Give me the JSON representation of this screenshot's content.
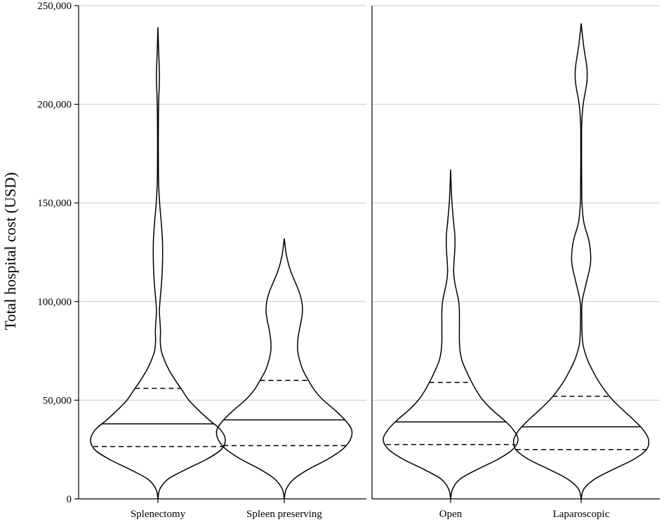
{
  "chart_data": {
    "type": "violin",
    "ylabel": "Total hospital cost (USD)",
    "ylim": [
      0,
      250000
    ],
    "yticks": [
      0,
      50000,
      100000,
      150000,
      200000,
      250000
    ],
    "ytick_labels": [
      "0",
      "50,000",
      "100,000",
      "150,000",
      "200,000",
      "250,000"
    ],
    "grid": "horizontal",
    "panels": [
      {
        "categories": [
          "Splenectomy",
          "Spleen preserving"
        ],
        "violins": [
          {
            "category": "Splenectomy",
            "median": 38000,
            "q1": 26500,
            "q3": 56000,
            "min": 0,
            "max": 239000,
            "density": [
              [
                0,
                0
              ],
              [
                5000,
                0.03
              ],
              [
                10000,
                0.15
              ],
              [
                15000,
                0.42
              ],
              [
                20000,
                0.72
              ],
              [
                25000,
                0.94
              ],
              [
                30000,
                1.0
              ],
              [
                35000,
                0.93
              ],
              [
                40000,
                0.76
              ],
              [
                45000,
                0.6
              ],
              [
                50000,
                0.46
              ],
              [
                55000,
                0.36
              ],
              [
                60000,
                0.26
              ],
              [
                65000,
                0.17
              ],
              [
                70000,
                0.1
              ],
              [
                75000,
                0.05
              ],
              [
                80000,
                0.035
              ],
              [
                85000,
                0.038
              ],
              [
                90000,
                0.03
              ],
              [
                95000,
                0.022
              ],
              [
                100000,
                0.03
              ],
              [
                110000,
                0.055
              ],
              [
                120000,
                0.068
              ],
              [
                130000,
                0.068
              ],
              [
                140000,
                0.05
              ],
              [
                150000,
                0.025
              ],
              [
                160000,
                0.01
              ],
              [
                170000,
                0.007
              ],
              [
                180000,
                0.006
              ],
              [
                190000,
                0.007
              ],
              [
                200000,
                0.01
              ],
              [
                210000,
                0.02
              ],
              [
                215000,
                0.022
              ],
              [
                220000,
                0.018
              ],
              [
                230000,
                0.008
              ],
              [
                239000,
                0
              ]
            ]
          },
          {
            "category": "Spleen preserving",
            "median": 40000,
            "q1": 27000,
            "q3": 60000,
            "min": 0,
            "max": 132000,
            "density": [
              [
                0,
                0
              ],
              [
                5000,
                0.03
              ],
              [
                10000,
                0.14
              ],
              [
                15000,
                0.36
              ],
              [
                20000,
                0.64
              ],
              [
                25000,
                0.86
              ],
              [
                30000,
                0.98
              ],
              [
                35000,
                1.0
              ],
              [
                40000,
                0.9
              ],
              [
                45000,
                0.75
              ],
              [
                50000,
                0.58
              ],
              [
                55000,
                0.45
              ],
              [
                60000,
                0.36
              ],
              [
                65000,
                0.28
              ],
              [
                70000,
                0.23
              ],
              [
                75000,
                0.2
              ],
              [
                80000,
                0.2
              ],
              [
                85000,
                0.22
              ],
              [
                90000,
                0.25
              ],
              [
                95000,
                0.27
              ],
              [
                100000,
                0.26
              ],
              [
                105000,
                0.22
              ],
              [
                110000,
                0.16
              ],
              [
                115000,
                0.1
              ],
              [
                120000,
                0.055
              ],
              [
                125000,
                0.025
              ],
              [
                132000,
                0
              ]
            ]
          }
        ]
      },
      {
        "categories": [
          "Open",
          "Laparoscopic"
        ],
        "violins": [
          {
            "category": "Open",
            "median": 39000,
            "q1": 27500,
            "q3": 59000,
            "min": 0,
            "max": 167000,
            "density": [
              [
                0,
                0
              ],
              [
                5000,
                0.03
              ],
              [
                10000,
                0.14
              ],
              [
                15000,
                0.4
              ],
              [
                20000,
                0.7
              ],
              [
                25000,
                0.92
              ],
              [
                30000,
                1.0
              ],
              [
                35000,
                0.93
              ],
              [
                40000,
                0.79
              ],
              [
                45000,
                0.62
              ],
              [
                50000,
                0.48
              ],
              [
                55000,
                0.38
              ],
              [
                60000,
                0.3
              ],
              [
                65000,
                0.23
              ],
              [
                70000,
                0.17
              ],
              [
                75000,
                0.14
              ],
              [
                80000,
                0.13
              ],
              [
                85000,
                0.13
              ],
              [
                90000,
                0.13
              ],
              [
                95000,
                0.13
              ],
              [
                100000,
                0.12
              ],
              [
                105000,
                0.09
              ],
              [
                110000,
                0.06
              ],
              [
                115000,
                0.045
              ],
              [
                120000,
                0.05
              ],
              [
                125000,
                0.06
              ],
              [
                130000,
                0.065
              ],
              [
                135000,
                0.06
              ],
              [
                140000,
                0.045
              ],
              [
                150000,
                0.02
              ],
              [
                160000,
                0.007
              ],
              [
                167000,
                0
              ]
            ]
          },
          {
            "category": "Laparoscopic",
            "median": 36500,
            "q1": 25000,
            "q3": 52000,
            "min": 0,
            "max": 241000,
            "density": [
              [
                0,
                0
              ],
              [
                5000,
                0.04
              ],
              [
                10000,
                0.2
              ],
              [
                15000,
                0.48
              ],
              [
                20000,
                0.78
              ],
              [
                25000,
                0.97
              ],
              [
                30000,
                1.0
              ],
              [
                35000,
                0.92
              ],
              [
                40000,
                0.78
              ],
              [
                45000,
                0.62
              ],
              [
                50000,
                0.47
              ],
              [
                55000,
                0.35
              ],
              [
                60000,
                0.25
              ],
              [
                65000,
                0.17
              ],
              [
                70000,
                0.1
              ],
              [
                75000,
                0.05
              ],
              [
                80000,
                0.02
              ],
              [
                90000,
                0.01
              ],
              [
                100000,
                0.015
              ],
              [
                110000,
                0.08
              ],
              [
                120000,
                0.14
              ],
              [
                130000,
                0.12
              ],
              [
                140000,
                0.04
              ],
              [
                150000,
                0.012
              ],
              [
                160000,
                0.008
              ],
              [
                170000,
                0.006
              ],
              [
                180000,
                0.006
              ],
              [
                190000,
                0.008
              ],
              [
                200000,
                0.03
              ],
              [
                210000,
                0.08
              ],
              [
                215000,
                0.09
              ],
              [
                220000,
                0.08
              ],
              [
                230000,
                0.035
              ],
              [
                241000,
                0
              ]
            ]
          }
        ]
      }
    ]
  }
}
